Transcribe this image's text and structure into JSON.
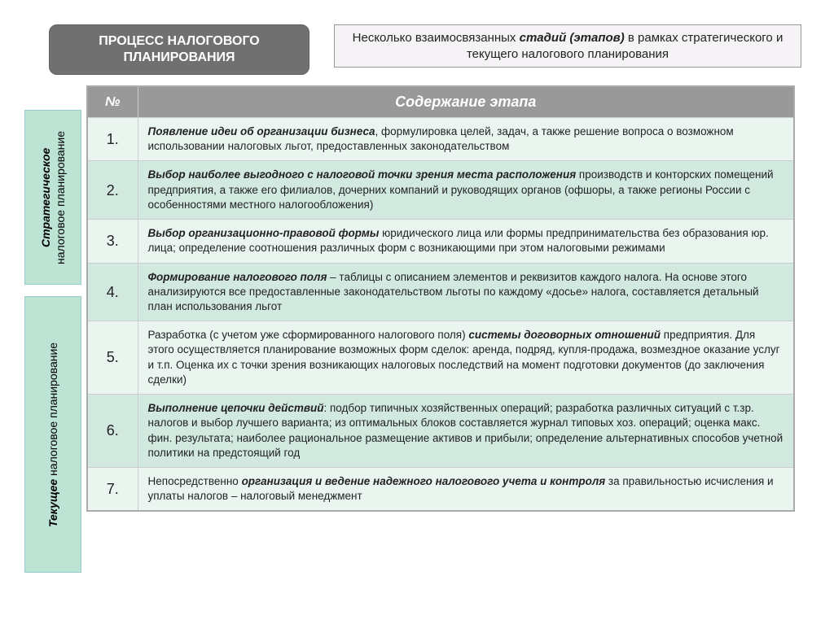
{
  "header": {
    "title_line1": "ПРОЦЕСС НАЛОГОВОГО",
    "title_line2": "ПЛАНИРОВАНИЯ",
    "subtitle_prefix": "Несколько взаимосвязанных ",
    "subtitle_em": "стадий (этапов)",
    "subtitle_suffix": " в рамках стратегического и текущего налогового планирования"
  },
  "side": {
    "top_bold": "Стратегическое",
    "top_rest": " налоговое планирование",
    "bot_bold": "Текущее",
    "bot_rest": " налоговое планирование"
  },
  "table": {
    "col_num": "№",
    "col_content": "Содержание этапа",
    "rows": [
      {
        "num": "1.",
        "bold": "Появление идеи об организации бизнеса",
        "rest": ", формулировка целей, задач, а также решение вопроса о возможном использовании налоговых льгот, предоставленных законодательством"
      },
      {
        "num": "2.",
        "bold": "Выбор наиболее выгодного с налоговой точки зрения места расположения",
        "rest": " производств и конторских помещений предприятия, а также его филиалов, дочерних компаний и руководящих органов (офшоры, а также регионы России с особенностями местного налогообложения)"
      },
      {
        "num": "3.",
        "bold": "Выбор организационно-правовой формы",
        "rest": " юридического лица или формы предпринимательства без образования юр. лица; определение соотношения различных форм с возникающими при этом налоговыми режимами"
      },
      {
        "num": "4.",
        "bold": "Формирование налогового поля",
        "rest": " – таблицы с описанием элементов и реквизитов каждого налога. На основе этого анализируются все предоставленные законодательством льготы по каждому «досье» налога, составляется детальный план использования льгот"
      },
      {
        "num": "5.",
        "pre": "Разработка (с учетом уже сформированного налогового поля) ",
        "bold": "системы договорных отношений",
        "rest": " предприятия. Для этого осуществляется планирование возможных форм сделок: аренда, подряд, купля-продажа, возмездное оказание услуг и т.п. Оценка их с точки зрения возникающих налоговых последствий на момент подготовки документов (до заключения сделки)"
      },
      {
        "num": "6.",
        "bold": "Выполнение цепочки действий",
        "rest": ": подбор типичных хозяйственных операций; разработка различных ситуаций с т.зр. налогов и выбор лучшего варианта; из оптимальных блоков составляется журнал типовых хоз. операций; оценка макс. фин. результата; наиболее рациональное размещение активов и прибыли; определение альтернативных способов учетной политики на предстоящий год"
      },
      {
        "num": "7.",
        "pre": "Непосредственно ",
        "bold": "организация и ведение надежного налогового учета и контроля",
        "rest": " за правильностью исчисления и уплаты налогов – налоговый менеджмент"
      }
    ]
  },
  "colors": {
    "badge_bg": "#707070",
    "side_bg": "#bde3d4",
    "row_light": "#eaf5f0",
    "row_dark": "#d1e9de",
    "header_bg": "#999999"
  }
}
